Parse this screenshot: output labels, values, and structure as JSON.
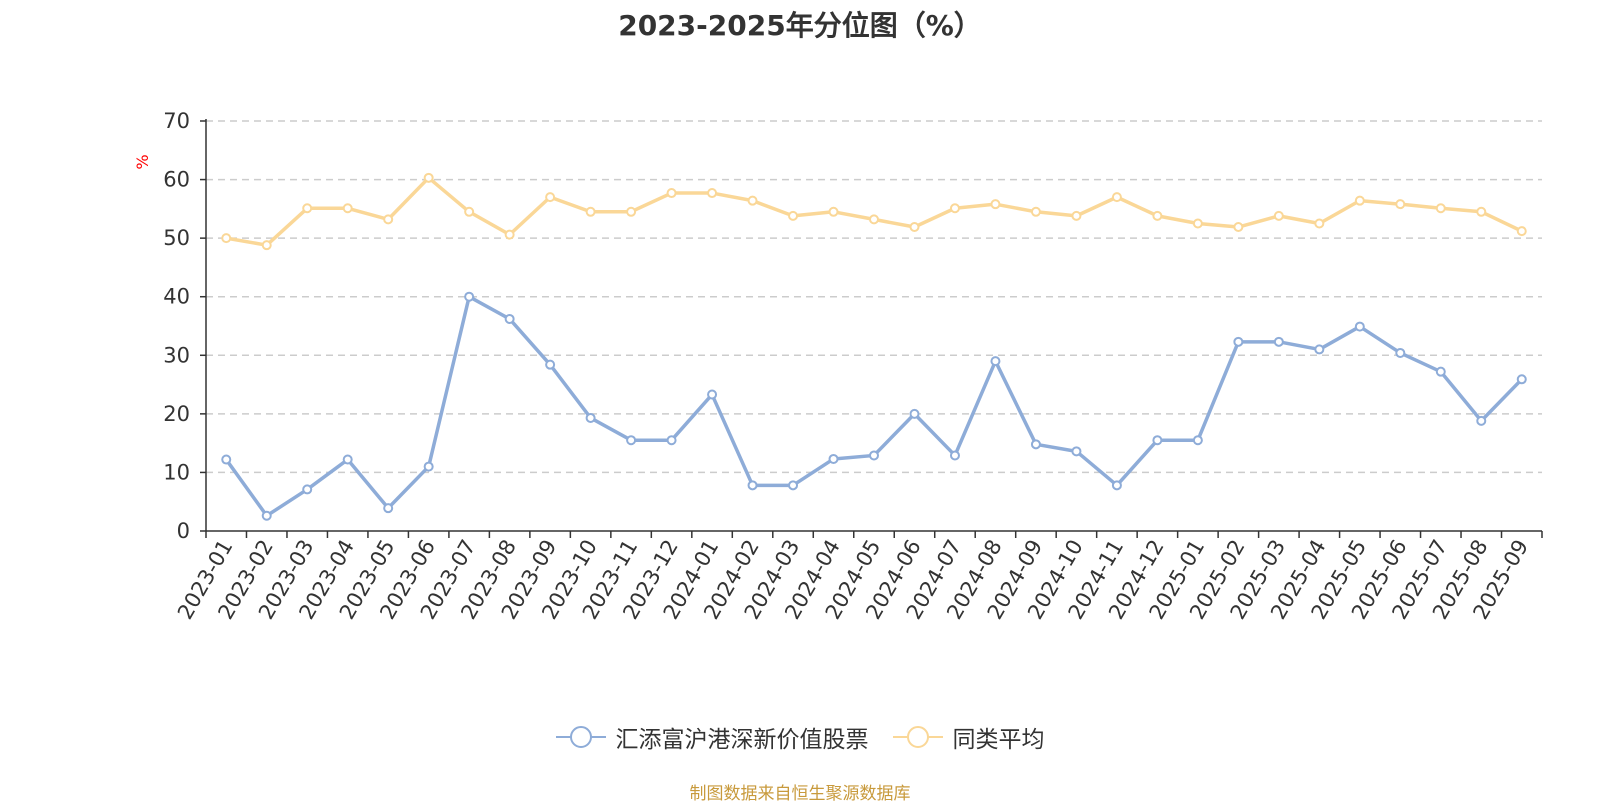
{
  "colors": {
    "series1": "#8eacd8",
    "series2": "#fad797",
    "source_text": "#c89a3c",
    "unit_label": "#ff0000",
    "grid": "#cccccc",
    "axis": "#333333"
  },
  "chart_data": {
    "type": "line",
    "title": "2023-2025年分位图（%）",
    "ylabel": "%",
    "xlabel": "",
    "ylim": [
      0,
      70
    ],
    "yticks": [
      0,
      10,
      20,
      30,
      40,
      50,
      60,
      70
    ],
    "grid": true,
    "legend_position": "bottom",
    "categories": [
      "2023-01",
      "2023-02",
      "2023-03",
      "2023-04",
      "2023-05",
      "2023-06",
      "2023-07",
      "2023-08",
      "2023-09",
      "2023-10",
      "2023-11",
      "2023-12",
      "2024-01",
      "2024-02",
      "2024-03",
      "2024-04",
      "2024-05",
      "2024-06",
      "2024-07",
      "2024-08",
      "2024-09",
      "2024-10",
      "2024-11",
      "2024-12",
      "2025-01",
      "2025-02",
      "2025-03",
      "2025-04",
      "2025-05",
      "2025-06",
      "2025-07",
      "2025-08",
      "2025-09"
    ],
    "series": [
      {
        "name": "汇添富沪港深新价值股票",
        "values": [
          12.2,
          2.6,
          7.1,
          12.2,
          3.9,
          11.0,
          40.0,
          36.2,
          28.4,
          19.3,
          15.5,
          15.5,
          23.3,
          7.8,
          7.8,
          12.3,
          12.9,
          20.0,
          12.9,
          29.0,
          14.8,
          13.6,
          7.8,
          15.5,
          15.5,
          32.3,
          32.3,
          31.0,
          34.9,
          30.4,
          27.2,
          18.8,
          25.9
        ]
      },
      {
        "name": "同类平均",
        "values": [
          50.0,
          48.8,
          55.1,
          55.1,
          53.2,
          60.3,
          54.5,
          50.6,
          57.0,
          54.5,
          54.5,
          57.7,
          57.7,
          56.4,
          53.8,
          54.5,
          53.2,
          51.9,
          55.1,
          55.8,
          54.5,
          53.8,
          57.0,
          53.8,
          52.5,
          51.9,
          53.8,
          52.5,
          56.4,
          55.8,
          55.1,
          54.5,
          51.2
        ]
      }
    ]
  },
  "source_text": "制图数据来自恒生聚源数据库"
}
